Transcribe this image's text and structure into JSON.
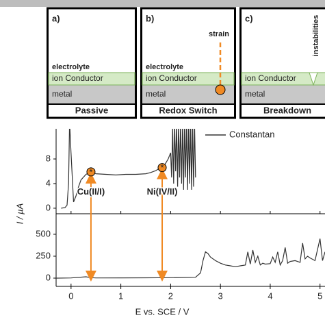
{
  "panels": [
    {
      "label": "a)",
      "electrolyte": "electrolyte",
      "conductor": "ion Conductor",
      "metal": "metal",
      "caption": "Passive"
    },
    {
      "label": "b)",
      "electrolyte": "electrolyte",
      "conductor": "ion Conductor",
      "metal": "metal",
      "caption": "Redox Switch",
      "annotation": "strain"
    },
    {
      "label": "c)",
      "conductor": "ion Conductor",
      "metal": "metal",
      "caption": "Breakdown",
      "annotation": "instabilities"
    }
  ],
  "chart_data": [
    {
      "type": "line",
      "ylabel": "I / µA",
      "xlim": [
        -0.3,
        5.1
      ],
      "xticks": [
        0,
        1,
        2,
        3,
        4,
        5
      ],
      "ylim": [
        -0.9,
        12.9
      ],
      "yticks": [
        0,
        4,
        8
      ],
      "legend": "upper right",
      "x": [
        -0.2,
        -0.12,
        -0.08,
        -0.05,
        -0.03,
        0.0,
        0.05,
        0.1,
        0.15,
        0.2,
        0.3,
        0.4,
        0.5,
        0.7,
        0.9,
        1.1,
        1.3,
        1.5,
        1.6,
        1.7,
        1.8,
        1.85,
        1.9,
        1.95,
        2.0,
        2.02,
        2.04,
        2.06,
        2.08,
        2.1,
        2.12,
        2.14,
        2.16,
        2.18,
        2.2,
        2.22,
        2.24,
        2.26,
        2.28,
        2.3,
        2.32,
        2.34,
        2.36,
        2.38,
        2.4,
        2.42,
        2.44,
        2.46,
        2.48,
        2.5
      ],
      "series": [
        {
          "name": "Constantan",
          "color": "#333333",
          "values": [
            0,
            0.1,
            0.5,
            4,
            14,
            9,
            1,
            2,
            3.5,
            4.6,
            5.5,
            5.9,
            5.6,
            5.5,
            5.4,
            5.5,
            5.5,
            5.6,
            5.8,
            6.1,
            6.6,
            6.8,
            7.3,
            8,
            9,
            5,
            13,
            4,
            14,
            6,
            14,
            3.5,
            14,
            5,
            14,
            4,
            14,
            3,
            14,
            5,
            14,
            3,
            14,
            4,
            14,
            3,
            14,
            3.5,
            14,
            5
          ]
        }
      ],
      "annotations": [
        {
          "text": "Cu(II/I)",
          "x": 0.4,
          "y": 5.9,
          "color": "#f08a24"
        },
        {
          "text": "Ni(IV/II)",
          "x": 1.83,
          "y": 6.6,
          "color": "#f08a24"
        }
      ]
    },
    {
      "type": "line",
      "xlabel": "E vs. SCE / V",
      "xlim": [
        -0.3,
        5.1
      ],
      "xticks": [
        0,
        1,
        2,
        3,
        4,
        5
      ],
      "ylim": [
        -94,
        734
      ],
      "yticks": [
        0,
        250,
        500
      ],
      "color": "#333333",
      "x": [
        -0.3,
        0,
        0.3,
        0.4,
        0.5,
        1,
        1.5,
        2,
        2.5,
        2.6,
        2.65,
        2.7,
        2.75,
        2.8,
        2.9,
        3.0,
        3.1,
        3.2,
        3.3,
        3.4,
        3.5,
        3.55,
        3.6,
        3.65,
        3.7,
        3.75,
        3.8,
        3.85,
        3.9,
        4.0,
        4.05,
        4.1,
        4.15,
        4.2,
        4.25,
        4.3,
        4.35,
        4.4,
        4.5,
        4.6,
        4.65,
        4.7,
        4.75,
        4.8,
        4.9,
        5.0,
        5.05,
        5.1
      ],
      "values": [
        0,
        2,
        15,
        5,
        2,
        3,
        4,
        5,
        10,
        60,
        200,
        300,
        280,
        240,
        200,
        170,
        150,
        140,
        130,
        140,
        150,
        300,
        160,
        320,
        180,
        250,
        150,
        170,
        160,
        165,
        240,
        180,
        300,
        150,
        200,
        350,
        170,
        190,
        200,
        180,
        400,
        220,
        250,
        230,
        200,
        450,
        200,
        300
      ]
    }
  ]
}
